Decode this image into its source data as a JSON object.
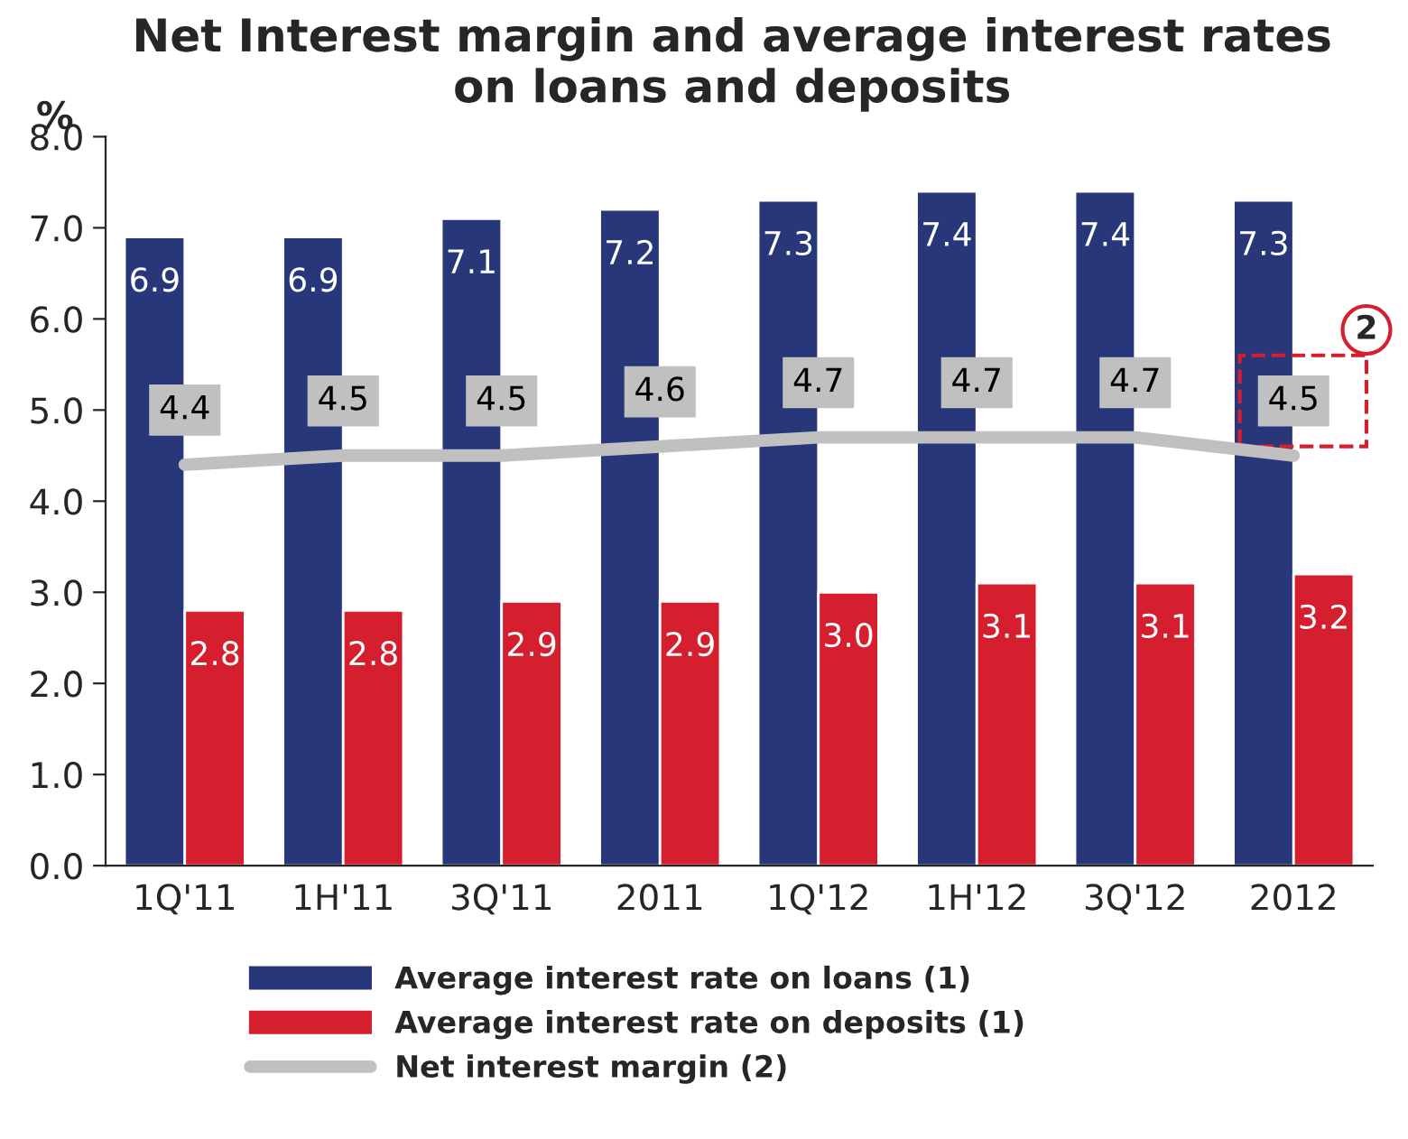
{
  "chart_data": {
    "type": "bar",
    "title": "Net Interest margin and average interest rates\non loans and deposits",
    "ylabel": "%",
    "categories": [
      "1Q'11",
      "1H'11",
      "3Q'11",
      "2011",
      "1Q'12",
      "1H'12",
      "3Q'12",
      "2012"
    ],
    "series": [
      {
        "name": "Average interest rate on loans (1)",
        "color": "#27377a",
        "values": [
          6.9,
          6.9,
          7.1,
          7.2,
          7.3,
          7.4,
          7.4,
          7.3
        ],
        "value_labels": [
          "6.9",
          "6.9",
          "7.1",
          "7.2",
          "7.3",
          "7.4",
          "7.4",
          "7.3"
        ]
      },
      {
        "name": "Average interest rate on deposits (1)",
        "color": "#d51f2e",
        "values": [
          2.8,
          2.8,
          2.9,
          2.9,
          3.0,
          3.1,
          3.1,
          3.2
        ],
        "value_labels": [
          "2.8",
          "2.8",
          "2.9",
          "2.9",
          "3.0",
          "3.1",
          "3.1",
          "3.2"
        ]
      },
      {
        "name": "Net interest margin (2)",
        "type": "line",
        "color": "#c0c0c0",
        "values": [
          4.4,
          4.5,
          4.5,
          4.6,
          4.7,
          4.7,
          4.7,
          4.5
        ],
        "value_labels": [
          "4.4",
          "4.5",
          "4.5",
          "4.6",
          "4.7",
          "4.7",
          "4.7",
          "4.5"
        ]
      }
    ],
    "ylim": [
      0,
      8
    ],
    "yticks": [
      {
        "value": 0,
        "label": "0.0"
      },
      {
        "value": 1,
        "label": "1.0"
      },
      {
        "value": 2,
        "label": "2.0"
      },
      {
        "value": 3,
        "label": "3.0"
      },
      {
        "value": 4,
        "label": "4.0"
      },
      {
        "value": 5,
        "label": "5.0"
      },
      {
        "value": 6,
        "label": "6.0"
      },
      {
        "value": 7,
        "label": "7.0"
      },
      {
        "value": 8,
        "label": "8.0"
      }
    ],
    "grid": false,
    "legend": "bottom",
    "annotations": [
      "2"
    ]
  }
}
